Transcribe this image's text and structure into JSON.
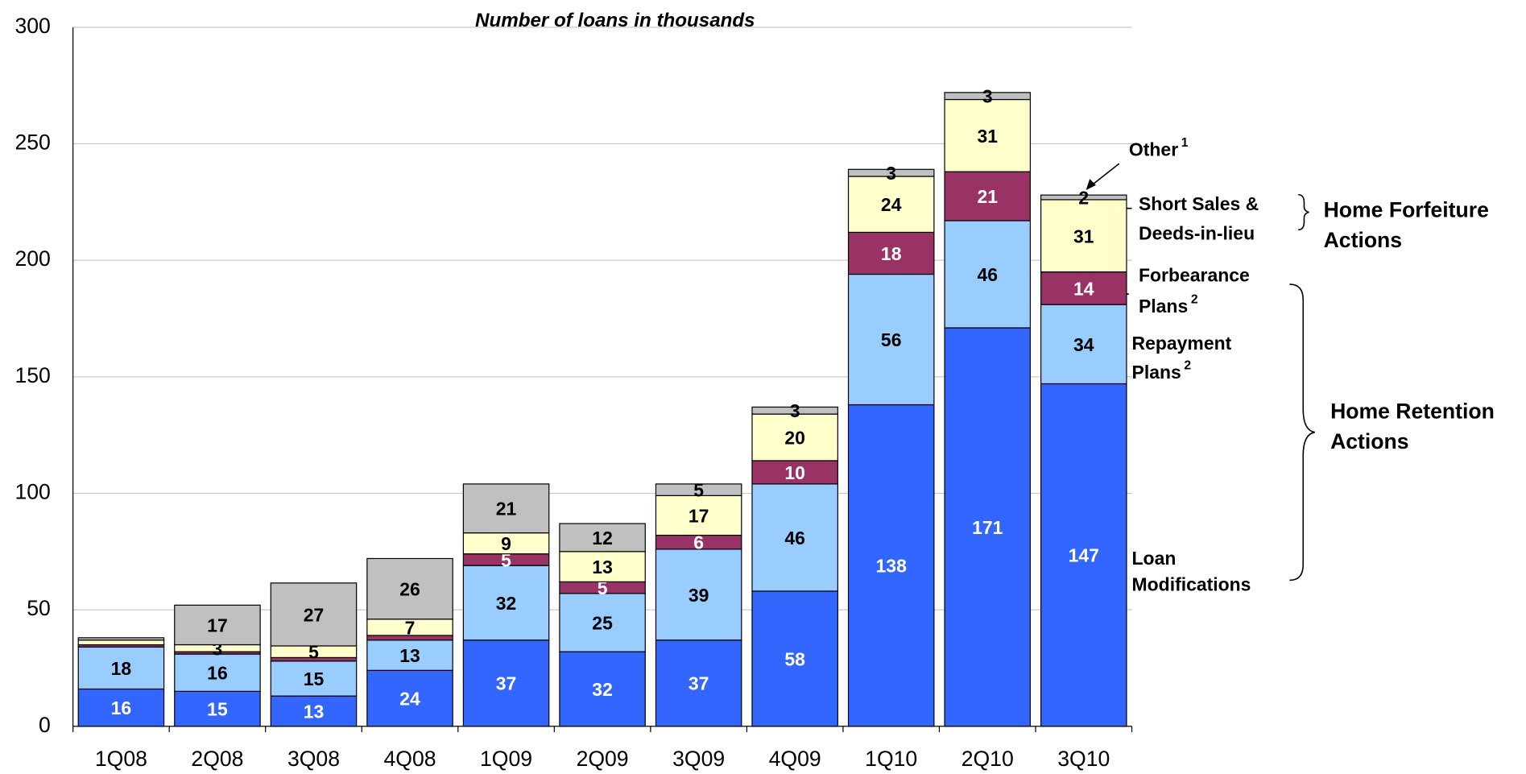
{
  "chart_data": {
    "type": "bar",
    "stacked": true,
    "title": "Number of loans in thousands",
    "categories": [
      "1Q08",
      "2Q08",
      "3Q08",
      "4Q08",
      "1Q09",
      "2Q09",
      "3Q09",
      "4Q09",
      "1Q10",
      "2Q10",
      "3Q10"
    ],
    "series": [
      {
        "name": "Loan Modifications",
        "color": "#3366ff",
        "label_color": "#ffffff",
        "values": [
          16,
          15,
          13,
          24,
          37,
          32,
          37,
          58,
          138,
          171,
          147
        ],
        "value_labels": [
          "16",
          "15",
          "13",
          "24",
          "37",
          "32",
          "37",
          "58",
          "138",
          "171",
          "147"
        ]
      },
      {
        "name": "Repayment Plans",
        "note": "2",
        "color": "#99ccff",
        "label_color": "#000000",
        "values": [
          18,
          16,
          15,
          13,
          32,
          25,
          39,
          46,
          56,
          46,
          34
        ],
        "value_labels": [
          "18",
          "16",
          "15",
          "13",
          "32",
          "25",
          "39",
          "46",
          "56",
          "46",
          "34"
        ]
      },
      {
        "name": "Forbearance Plans",
        "note": "2",
        "color": "#993366",
        "label_color": "#ffffff",
        "values": [
          1,
          1,
          1.5,
          2,
          5,
          5,
          6,
          10,
          18,
          21,
          14
        ],
        "value_labels": [
          null,
          null,
          null,
          null,
          "5",
          "5",
          "6",
          "10",
          "18",
          "21",
          "14"
        ]
      },
      {
        "name": "Short Sales & Deeds-in-lieu",
        "color": "#ffffcc",
        "label_color": "#000000",
        "values": [
          2,
          3,
          5,
          7,
          9,
          13,
          17,
          20,
          24,
          31,
          31
        ],
        "value_labels": [
          null,
          "3",
          "5",
          "7",
          "9",
          "13",
          "17",
          "20",
          "24",
          "31",
          "31"
        ]
      },
      {
        "name": "Other",
        "note": "1",
        "color": "#c0c0c0",
        "label_color": "#000000",
        "values": [
          1,
          17,
          27,
          26,
          21,
          12,
          5,
          3,
          3,
          3,
          2
        ],
        "value_labels": [
          null,
          "17",
          "27",
          "26",
          "21",
          "12",
          "5",
          "3",
          "3",
          "3",
          "2"
        ]
      }
    ],
    "groups": [
      "Home Forfeiture Actions",
      "Home Retention Actions"
    ],
    "ylim": [
      0,
      300
    ],
    "yticks": [
      0,
      50,
      100,
      150,
      200,
      250,
      300
    ],
    "grid": true
  }
}
